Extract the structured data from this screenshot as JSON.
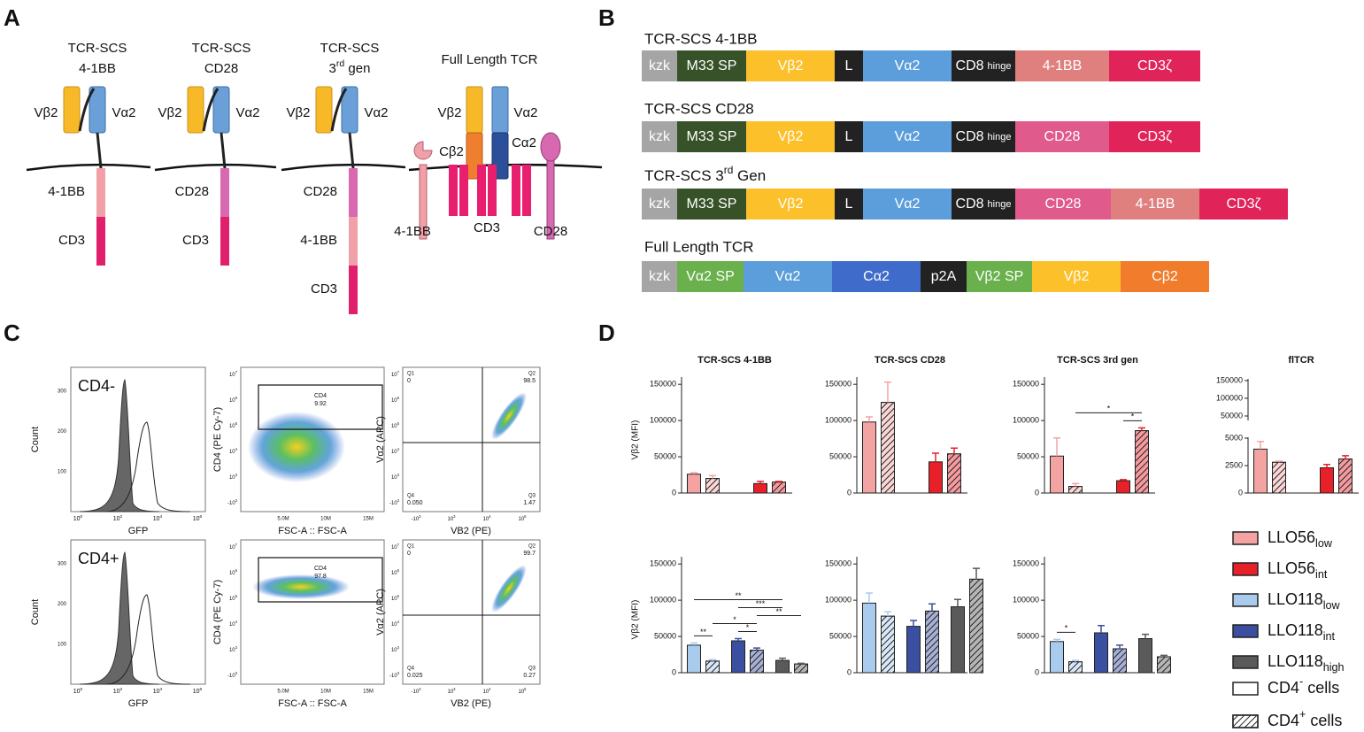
{
  "panel_labels": [
    "A",
    "B",
    "C",
    "D"
  ],
  "panel_a": {
    "constructs": [
      {
        "title": [
          "TCR-SCS",
          "4-1BB"
        ],
        "vb": "Vβ2",
        "va": "Vα2",
        "domains": [
          {
            "label": "4-1BB",
            "color": "#f2a0a8"
          },
          {
            "label": "CD3",
            "color": "#e0206a"
          }
        ]
      },
      {
        "title": [
          "TCR-SCS",
          "CD28"
        ],
        "vb": "Vβ2",
        "va": "Vα2",
        "domains": [
          {
            "label": "CD28",
            "color": "#d868b0"
          },
          {
            "label": "CD3",
            "color": "#e0206a"
          }
        ]
      },
      {
        "title": [
          "TCR-SCS",
          {
            "main": "3",
            "sup": "rd",
            "rest": " gen"
          }
        ],
        "vb": "Vβ2",
        "va": "Vα2",
        "domains": [
          {
            "label": "CD28",
            "color": "#d868b0"
          },
          {
            "label": "4-1BB",
            "color": "#f2a0a8"
          },
          {
            "label": "CD3",
            "color": "#e0206a"
          }
        ]
      }
    ],
    "full": {
      "title": "Full Length TCR",
      "vb": "Vβ2",
      "va": "Vα2",
      "cb": "Cβ2",
      "ca": "Cα2",
      "left": "4-1BB",
      "mid": "CD3",
      "right": "CD28"
    }
  },
  "panel_b": {
    "rows": [
      {
        "title": "TCR-SCS 4-1BB",
        "segments": [
          {
            "label": "kzk",
            "color": "#a5a5a5"
          },
          {
            "label": "M33 SP",
            "color": "#375228"
          },
          {
            "label": "Vβ2",
            "color": "#fcc02a"
          },
          {
            "label": "L",
            "color": "#222222"
          },
          {
            "label": "Vα2",
            "color": "#5c9ddb"
          },
          {
            "label": "CD8",
            "sub": "hinge",
            "color": "#222222"
          },
          {
            "label": "4-1BB",
            "color": "#e0807e"
          },
          {
            "label": "CD3ζ",
            "color": "#e0245a"
          }
        ]
      },
      {
        "title": "TCR-SCS CD28",
        "segments": [
          {
            "label": "kzk",
            "color": "#a5a5a5"
          },
          {
            "label": "M33 SP",
            "color": "#375228"
          },
          {
            "label": "Vβ2",
            "color": "#fcc02a"
          },
          {
            "label": "L",
            "color": "#222222"
          },
          {
            "label": "Vα2",
            "color": "#5c9ddb"
          },
          {
            "label": "CD8",
            "sub": "hinge",
            "color": "#222222"
          },
          {
            "label": "CD28",
            "color": "#e05a8c"
          },
          {
            "label": "CD3ζ",
            "color": "#e0245a"
          }
        ]
      },
      {
        "title": {
          "main": "TCR-SCS 3",
          "sup": "rd",
          "rest": " Gen"
        },
        "segments": [
          {
            "label": "kzk",
            "color": "#a5a5a5"
          },
          {
            "label": "M33 SP",
            "color": "#375228"
          },
          {
            "label": "Vβ2",
            "color": "#fcc02a"
          },
          {
            "label": "L",
            "color": "#222222"
          },
          {
            "label": "Vα2",
            "color": "#5c9ddb"
          },
          {
            "label": "CD8",
            "sub": "hinge",
            "color": "#222222"
          },
          {
            "label": "CD28",
            "color": "#e05a8c"
          },
          {
            "label": "4-1BB",
            "color": "#e0807e"
          },
          {
            "label": "CD3ζ",
            "color": "#e0245a"
          }
        ]
      },
      {
        "title": "Full Length TCR",
        "segments": [
          {
            "label": "kzk",
            "color": "#a5a5a5"
          },
          {
            "label": "Vα2 SP",
            "color": "#6ab04c"
          },
          {
            "label": "Vα2",
            "color": "#5c9ddb"
          },
          {
            "label": "Cα2",
            "color": "#3f6ccb"
          },
          {
            "label": "p2A",
            "color": "#222222"
          },
          {
            "label": "Vβ2 SP",
            "color": "#6ab04c"
          },
          {
            "label": "Vβ2",
            "color": "#fcc02a"
          },
          {
            "label": "Cβ2",
            "color": "#f07c2c"
          }
        ]
      }
    ]
  },
  "panel_c": {
    "hist_ylabel": "Count",
    "hist_xlabel": "GFP",
    "gate_ylabel": "CD4 (PE Cy-7)",
    "gate_xlabel": "FSC-A :: FSC-A",
    "quad_ylabel": "Vα2 (APC)",
    "quad_xlabel": "VB2 (PE)",
    "hist_yticks": [
      "100",
      "200",
      "300"
    ],
    "hist_xticks": [
      {
        "base": "10",
        "exp": "0"
      },
      {
        "base": "10",
        "exp": "2"
      },
      {
        "base": "10",
        "exp": "4"
      },
      {
        "base": "10",
        "exp": "6"
      }
    ],
    "gate_xticks": [
      "5.0M",
      "10M",
      "15M"
    ],
    "log_yticks": [
      {
        "base": "10",
        "exp": "7"
      },
      {
        "base": "10",
        "exp": "6"
      },
      {
        "base": "10",
        "exp": "5"
      },
      {
        "base": "10",
        "exp": "4"
      },
      {
        "base": "10",
        "exp": "3"
      },
      {
        "base": "-10",
        "exp": "3"
      }
    ],
    "quad_xticks": [
      {
        "base": "-10",
        "exp": "3"
      },
      {
        "base": "10",
        "exp": "3"
      },
      {
        "base": "10",
        "exp": "4"
      },
      {
        "base": "10",
        "exp": "5"
      }
    ],
    "rows": [
      {
        "name": "CD4-",
        "gate": {
          "name": "CD4",
          "value": "9.92"
        },
        "quads": [
          [
            "Q1",
            "0"
          ],
          [
            "Q2",
            "98.5"
          ],
          [
            "Q3",
            "1.47"
          ],
          [
            "Q4",
            "0.050"
          ]
        ]
      },
      {
        "name": "CD4+",
        "gate": {
          "name": "CD4",
          "value": "97.8"
        },
        "quads": [
          [
            "Q1",
            "0"
          ],
          [
            "Q2",
            "99.7"
          ],
          [
            "Q3",
            "0.27"
          ],
          [
            "Q4",
            "0.025"
          ]
        ]
      }
    ]
  },
  "panel_d": {
    "legend": [
      {
        "main": "LLO56",
        "sub": "low",
        "color": "#f4a3a3",
        "hatched": false
      },
      {
        "main": "LLO56",
        "sub": "int",
        "color": "#e8202a",
        "hatched": false
      },
      {
        "main": "LLO118",
        "sub": "low",
        "color": "#a9cbee",
        "hatched": false
      },
      {
        "main": "LLO118",
        "sub": "int",
        "color": "#3a4fa0",
        "hatched": false
      },
      {
        "main": "LLO118",
        "sub": "high",
        "color": "#5a5a5a",
        "hatched": false
      },
      {
        "main": "CD4",
        "sup": "-",
        "rest": " cells",
        "color": "#ffffff",
        "hatched": false
      },
      {
        "main": "CD4",
        "sup": "+",
        "rest": " cells",
        "color": "#ffffff",
        "hatched": true
      }
    ]
  },
  "chart_data": [
    {
      "type": "bar",
      "title": "TCR-SCS 4-1BB",
      "ylabel": "Vβ2 (MFI)",
      "ylim": [
        0,
        160000
      ],
      "yticks": [
        0,
        50000,
        100000,
        150000
      ],
      "values": [
        26000,
        20000,
        13000,
        15000
      ],
      "errors": [
        2000,
        4000,
        3000,
        1000
      ],
      "colors": [
        "#f4a3a3",
        "#f4a3a3",
        "#e8202a",
        "#e8202a"
      ],
      "hatched": [
        false,
        true,
        false,
        true
      ],
      "annotations": []
    },
    {
      "type": "bar",
      "title": "TCR-SCS CD28",
      "ylim": [
        0,
        160000
      ],
      "yticks": [
        0,
        50000,
        100000,
        150000
      ],
      "values": [
        98000,
        125000,
        43000,
        54000
      ],
      "errors": [
        7000,
        28000,
        12000,
        8000
      ],
      "colors": [
        "#f4a3a3",
        "#f4a3a3",
        "#e8202a",
        "#e8202a"
      ],
      "hatched": [
        false,
        true,
        false,
        true
      ],
      "annotations": []
    },
    {
      "type": "bar",
      "title": "TCR-SCS 3rd gen",
      "ylim": [
        0,
        160000
      ],
      "yticks": [
        0,
        50000,
        100000,
        150000
      ],
      "values": [
        51000,
        9000,
        17000,
        86000
      ],
      "errors": [
        25000,
        4000,
        1500,
        4000
      ],
      "colors": [
        "#f4a3a3",
        "#f4a3a3",
        "#e8202a",
        "#e8202a"
      ],
      "hatched": [
        false,
        true,
        false,
        true
      ],
      "annotations": [
        {
          "label": "*",
          "bars": [
            2,
            3
          ]
        },
        {
          "label": "*",
          "bars": [
            1,
            3
          ]
        }
      ]
    },
    {
      "type": "bar",
      "title": "flTCR",
      "ylim": [
        0,
        5000
      ],
      "yticks": [
        0,
        2500,
        5000
      ],
      "upper_ylim": [
        50000,
        150000
      ],
      "upper_yticks": [
        50000,
        100000,
        150000
      ],
      "values": [
        4000,
        2800,
        2300,
        3100
      ],
      "errors": [
        700,
        100,
        300,
        300
      ],
      "colors": [
        "#f4a3a3",
        "#f4a3a3",
        "#e8202a",
        "#e8202a"
      ],
      "hatched": [
        false,
        true,
        false,
        true
      ],
      "annotations": []
    },
    {
      "type": "bar",
      "ylabel": "Vβ2 (MFI)",
      "ylim": [
        0,
        160000
      ],
      "yticks": [
        0,
        50000,
        100000,
        150000
      ],
      "values": [
        38000,
        16000,
        44000,
        31000,
        17000,
        12000
      ],
      "errors": [
        3000,
        2000,
        3000,
        3000,
        3000,
        1000
      ],
      "colors": [
        "#a9cbee",
        "#a9cbee",
        "#3a4fa0",
        "#3a4fa0",
        "#5a5a5a",
        "#5a5a5a"
      ],
      "hatched": [
        false,
        true,
        false,
        true,
        false,
        true
      ],
      "annotations": [
        {
          "label": "**",
          "bars": [
            0,
            1
          ]
        },
        {
          "label": "*",
          "bars": [
            2,
            3
          ]
        },
        {
          "label": "*",
          "bars": [
            1,
            3
          ]
        },
        {
          "label": "**",
          "bars": [
            3,
            5
          ]
        },
        {
          "label": "***",
          "bars": [
            2,
            4
          ]
        },
        {
          "label": "**",
          "bars": [
            0,
            4
          ]
        }
      ]
    },
    {
      "type": "bar",
      "ylim": [
        0,
        160000
      ],
      "yticks": [
        0,
        50000,
        100000,
        150000
      ],
      "values": [
        96000,
        78000,
        64000,
        85000,
        91000,
        129000
      ],
      "errors": [
        14000,
        6000,
        8000,
        10000,
        10000,
        15000
      ],
      "colors": [
        "#a9cbee",
        "#a9cbee",
        "#3a4fa0",
        "#3a4fa0",
        "#5a5a5a",
        "#5a5a5a"
      ],
      "hatched": [
        false,
        true,
        false,
        true,
        false,
        true
      ],
      "annotations": []
    },
    {
      "type": "bar",
      "ylim": [
        0,
        160000
      ],
      "yticks": [
        0,
        50000,
        100000,
        150000
      ],
      "values": [
        43000,
        15000,
        55000,
        33000,
        47000,
        22000
      ],
      "errors": [
        3000,
        2000,
        10000,
        5000,
        6000,
        2000
      ],
      "colors": [
        "#a9cbee",
        "#a9cbee",
        "#3a4fa0",
        "#3a4fa0",
        "#5a5a5a",
        "#5a5a5a"
      ],
      "hatched": [
        false,
        true,
        false,
        true,
        false,
        true
      ],
      "annotations": [
        {
          "label": "*",
          "bars": [
            0,
            1
          ]
        }
      ]
    }
  ]
}
